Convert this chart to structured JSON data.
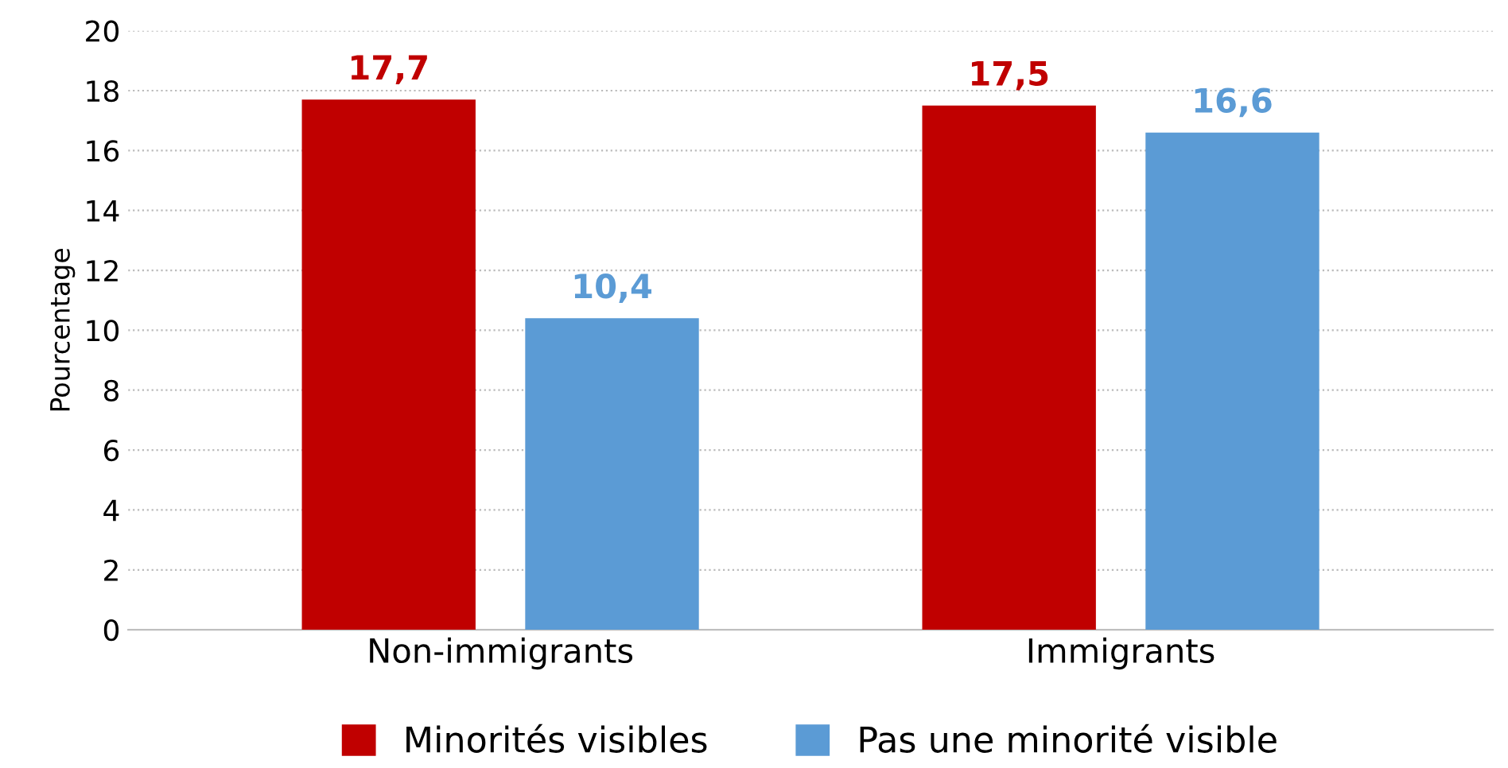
{
  "chart_data": {
    "type": "bar",
    "ylabel": "Pourcentage",
    "categories": [
      "Non-immigrants",
      "Immigrants"
    ],
    "series": [
      {
        "name": "Minorités visibles",
        "color": "#c00000",
        "values": [
          17.7,
          17.5
        ],
        "value_labels": [
          "17,7",
          "17,5"
        ]
      },
      {
        "name": "Pas une minorité visible",
        "color": "#5b9bd5",
        "values": [
          10.4,
          16.6
        ],
        "value_labels": [
          "10,4",
          "16,6"
        ]
      }
    ],
    "ylim": [
      0,
      20
    ],
    "yticks": [
      0,
      2,
      4,
      6,
      8,
      10,
      12,
      14,
      16,
      18,
      20
    ],
    "grid": "y",
    "legend": "bottom"
  }
}
